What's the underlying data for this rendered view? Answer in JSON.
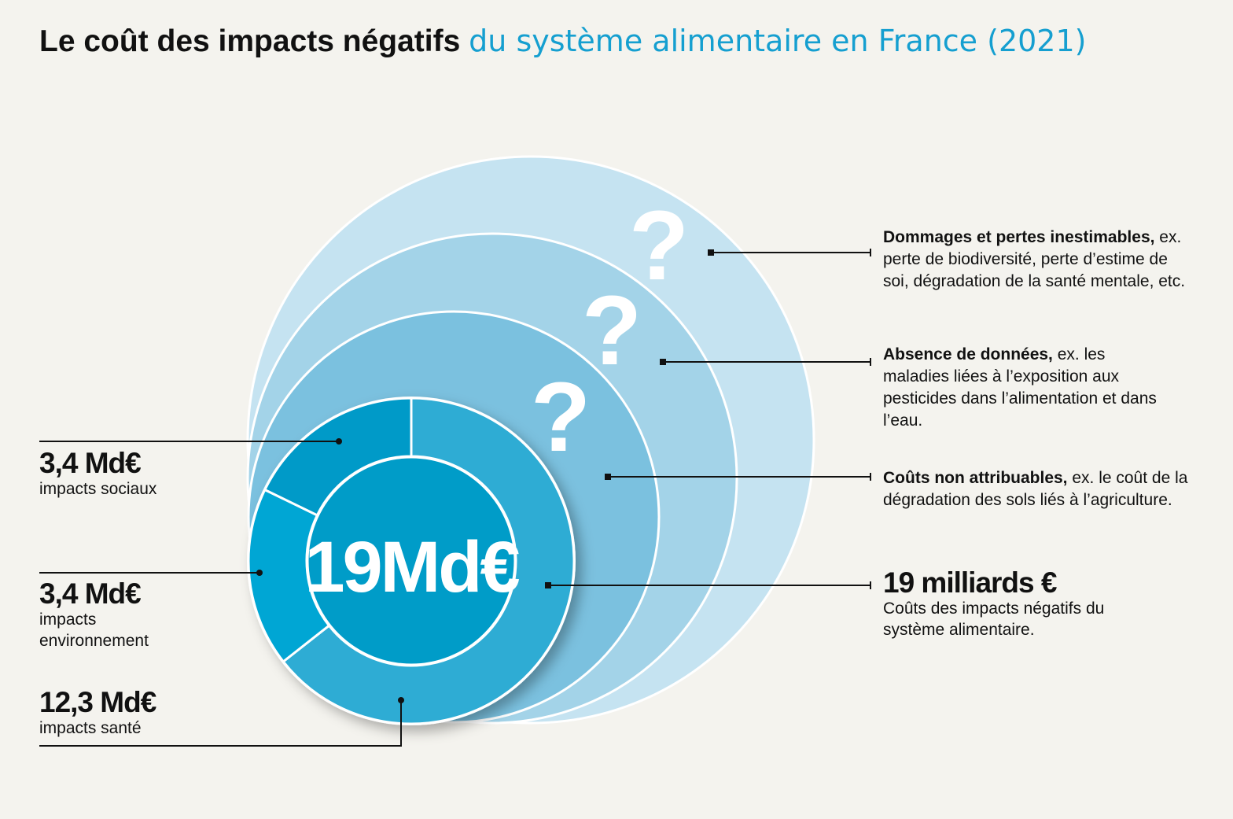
{
  "title": {
    "part1": "Le coût des impacts négatifs",
    "part2": "du système alimentaire en France (2021)"
  },
  "center_label": "19Md€",
  "question_mark": "?",
  "left_labels": [
    {
      "value": "3,4 Md€",
      "text": "impacts sociaux"
    },
    {
      "value": "3,4 Md€",
      "text": "impacts environnement"
    },
    {
      "value": "12,3 Md€",
      "text": "impacts santé"
    }
  ],
  "right_labels": [
    {
      "bold": "Dommages et pertes inestimables,",
      "text": " ex. perte de biodiversité, perte d’estime de soi, dégradation de la santé mentale, etc."
    },
    {
      "bold": "Absence de données,",
      "text": " ex. les maladies liées à l’exposition aux pesticides dans l’alimentation et dans l’eau."
    },
    {
      "bold": "Coûts non attribuables,",
      "text": " ex. le coût de la dégradation des sols liés à l’agriculture."
    },
    {
      "bold": "19 milliards €",
      "text": "Coûts des impacts négatifs du système alimentaire."
    }
  ],
  "colors": {
    "title_accent": "#159fd0",
    "ring1": "#c5e3f1",
    "ring2": "#a3d3e8",
    "ring3": "#7bc1df",
    "sante": "#2eacd4",
    "environnement": "#00a6d4",
    "sociaux": "#049ac8",
    "center": "#049cc8"
  },
  "chart_data": {
    "type": "pie",
    "title": "Le coût des impacts négatifs du système alimentaire en France (2021)",
    "total": 19,
    "unit": "Md€",
    "categories": [
      "impacts santé",
      "impacts environnement",
      "impacts sociaux"
    ],
    "values": [
      12.3,
      3.4,
      3.4
    ],
    "unquantified_layers": [
      "Coûts non attribuables",
      "Absence de données",
      "Dommages et pertes inestimables"
    ]
  }
}
